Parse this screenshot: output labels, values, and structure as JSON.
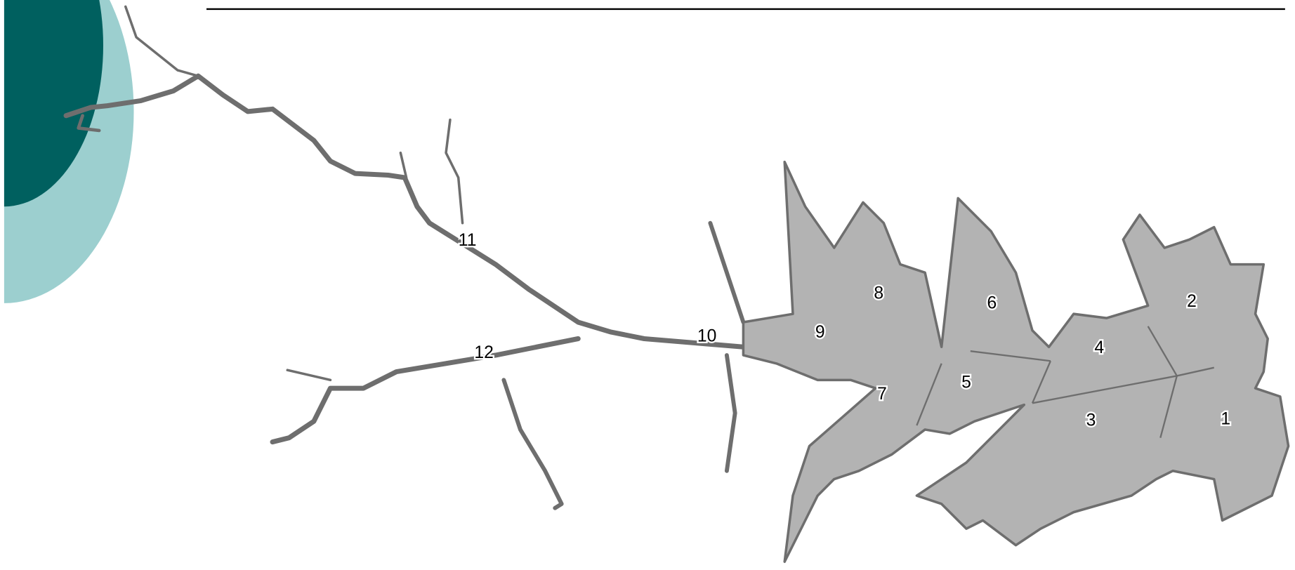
{
  "zones": [
    {
      "label": "1"
    },
    {
      "label": "2"
    },
    {
      "label": "3"
    },
    {
      "label": "4"
    },
    {
      "label": "5"
    },
    {
      "label": "6"
    },
    {
      "label": "7"
    },
    {
      "label": "8"
    },
    {
      "label": "9"
    },
    {
      "label": "10"
    },
    {
      "label": "11"
    },
    {
      "label": "12"
    }
  ]
}
